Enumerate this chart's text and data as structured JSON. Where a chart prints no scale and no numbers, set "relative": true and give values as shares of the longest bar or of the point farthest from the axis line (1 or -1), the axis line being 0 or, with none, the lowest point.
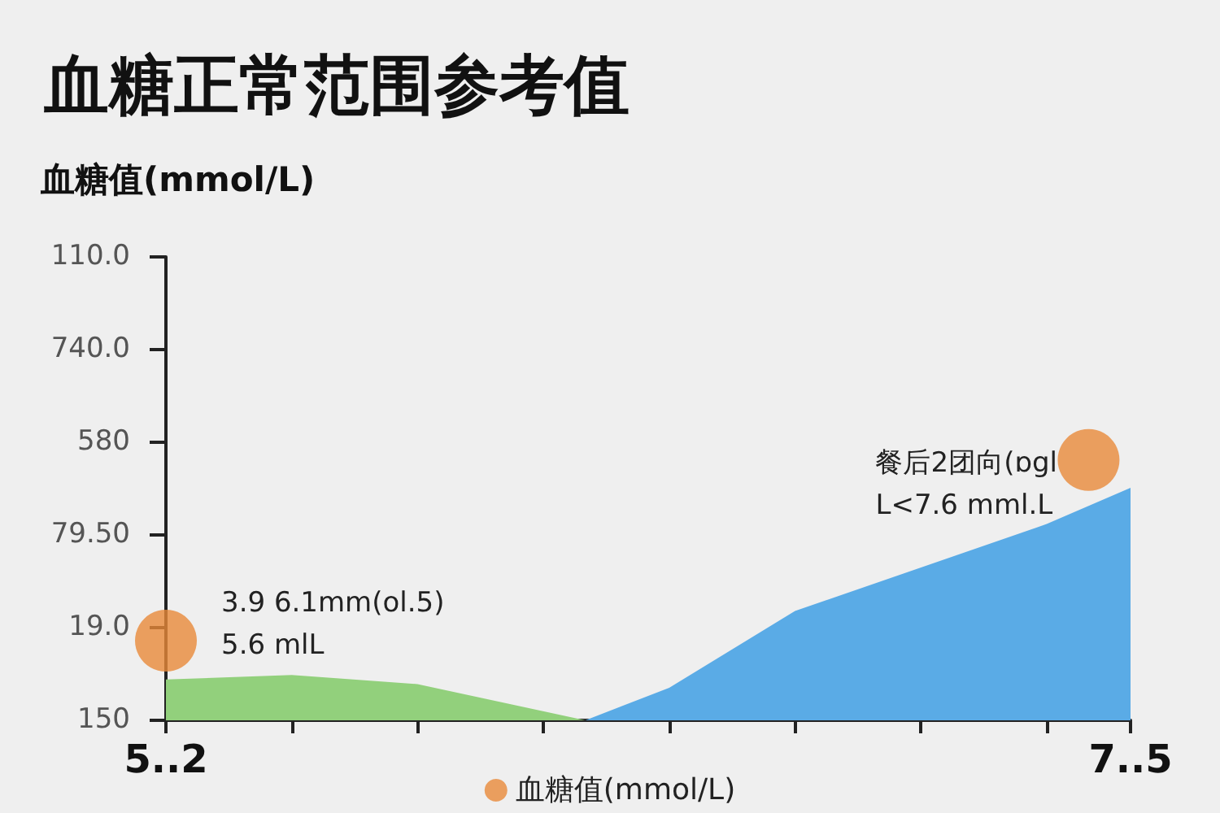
{
  "chart_data": {
    "type": "area",
    "title": "血糖正常范围参考值",
    "subtitle": "血糖值(mmol/L)",
    "relative": true,
    "categories": [
      "5..2",
      null,
      null,
      null,
      null,
      null,
      null,
      null,
      null,
      null,
      null,
      null,
      null,
      null,
      null,
      null,
      null,
      null,
      null,
      null,
      null,
      null,
      null,
      "7..5"
    ],
    "series": [
      {
        "color": "#92d07c",
        "values": [
          0.157,
          null,
          null,
          0.174,
          null,
          null,
          0.139,
          null,
          null,
          null,
          0,
          null,
          null,
          null,
          null,
          null,
          null,
          null,
          null,
          null,
          null,
          null,
          null,
          null
        ]
      },
      {
        "color": "#5aabe6",
        "values": [
          null,
          null,
          null,
          null,
          null,
          null,
          null,
          null,
          null,
          null,
          0,
          null,
          0.125,
          null,
          null,
          0.42,
          null,
          null,
          null,
          null,
          null,
          0.754,
          null,
          0.893
        ]
      },
      {
        "type": "scatter",
        "name": "血糖值(mmol/L)",
        "color": "#e8893a",
        "values": [
          0.306,
          null,
          null,
          null,
          null,
          null,
          null,
          null,
          null,
          null,
          null,
          null,
          null,
          null,
          null,
          null,
          null,
          null,
          null,
          null,
          null,
          null,
          1,
          null
        ]
      }
    ],
    "annotations": [
      "110.0",
      "740.0",
      "580",
      "79.50",
      "19.0",
      "150",
      {
        "text": "3.9 6.1mm(ol.5)\n5.6 mlL",
        "x": "5..2",
        "y": 0.306
      },
      "餐后2团向(ɒgl\nL<7.6 mml.L"
    ],
    "legend": "bottom"
  }
}
